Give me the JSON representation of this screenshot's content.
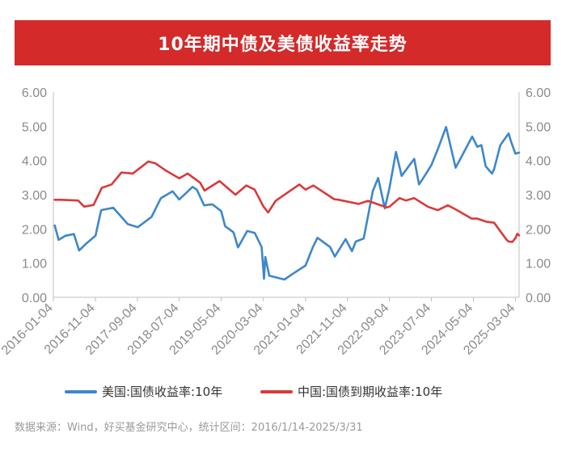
{
  "title": "10年期中债及美债收益率走势",
  "source": "数据来源：Wind，好买基金研究中心，统计区间：2016/1/14-2025/3/31",
  "colors": {
    "us": "#3d87cb",
    "cn": "#d93a3a",
    "title_bg": "#d42a2a"
  },
  "chart_data": {
    "type": "line",
    "title": "10年期中债及美债收益率走势",
    "ylim": [
      0,
      6
    ],
    "y_ticks": [
      "0.00",
      "1.00",
      "2.00",
      "3.00",
      "4.00",
      "5.00",
      "6.00"
    ],
    "x_ticks": [
      "2016-01-04",
      "2016-11-04",
      "2017-09-04",
      "2018-07-04",
      "2019-05-04",
      "2020-03-04",
      "2021-01-04",
      "2021-11-04",
      "2022-09-04",
      "2023-07-04",
      "2024-05-04",
      "2025-03-04"
    ],
    "legend_position": "bottom",
    "grid": false,
    "series": [
      {
        "name": "美国:国债收益率:10年",
        "x": [
          "2016-01-14",
          "2016-02-11",
          "2016-04-01",
          "2016-06-01",
          "2016-07-08",
          "2016-09-01",
          "2016-11-04",
          "2016-12-15",
          "2017-03-13",
          "2017-06-26",
          "2017-09-07",
          "2017-12-15",
          "2018-02-21",
          "2018-05-17",
          "2018-07-04",
          "2018-10-08",
          "2018-11-08",
          "2018-12-31",
          "2019-03-01",
          "2019-05-04",
          "2019-06-01",
          "2019-08-01",
          "2019-09-03",
          "2019-11-08",
          "2020-01-02",
          "2020-02-21",
          "2020-03-09",
          "2020-03-18",
          "2020-04-16",
          "2020-08-04",
          "2020-10-01",
          "2021-01-04",
          "2021-02-25",
          "2021-03-31",
          "2021-07-01",
          "2021-08-04",
          "2021-10-21",
          "2021-12-06",
          "2022-01-03",
          "2022-03-01",
          "2022-05-06",
          "2022-06-14",
          "2022-08-01",
          "2022-09-04",
          "2022-10-21",
          "2022-12-01",
          "2023-03-02",
          "2023-04-06",
          "2023-05-01",
          "2023-07-04",
          "2023-08-21",
          "2023-10-19",
          "2023-12-27",
          "2024-02-01",
          "2024-04-25",
          "2024-06-01",
          "2024-07-01",
          "2024-08-01",
          "2024-09-16",
          "2024-10-01",
          "2024-11-15",
          "2025-01-14",
          "2025-02-01",
          "2025-03-04",
          "2025-03-31"
        ],
        "values": [
          2.1,
          1.68,
          1.8,
          1.85,
          1.37,
          1.58,
          1.8,
          2.55,
          2.62,
          2.14,
          2.05,
          2.35,
          2.9,
          3.1,
          2.86,
          3.23,
          3.15,
          2.69,
          2.72,
          2.52,
          2.08,
          1.9,
          1.46,
          1.94,
          1.88,
          1.47,
          0.54,
          1.18,
          0.63,
          0.52,
          0.68,
          0.93,
          1.46,
          1.74,
          1.47,
          1.19,
          1.7,
          1.35,
          1.63,
          1.72,
          3.1,
          3.49,
          2.6,
          3.2,
          4.25,
          3.55,
          4.05,
          3.3,
          3.45,
          3.86,
          4.34,
          4.98,
          3.79,
          4.06,
          4.7,
          4.4,
          4.45,
          3.83,
          3.62,
          3.75,
          4.45,
          4.79,
          4.55,
          4.2,
          4.23
        ]
      },
      {
        "name": "中国:国债到期收益率:10年",
        "x": [
          "2016-01-14",
          "2016-03-01",
          "2016-07-01",
          "2016-08-15",
          "2016-10-21",
          "2016-12-20",
          "2017-03-01",
          "2017-05-11",
          "2017-08-01",
          "2017-11-22",
          "2018-01-11",
          "2018-04-01",
          "2018-07-04",
          "2018-09-03",
          "2018-12-03",
          "2019-01-03",
          "2019-04-22",
          "2019-08-15",
          "2019-11-01",
          "2020-01-01",
          "2020-03-04",
          "2020-04-08",
          "2020-06-01",
          "2020-11-20",
          "2021-01-04",
          "2021-03-01",
          "2021-07-30",
          "2021-09-01",
          "2022-01-24",
          "2022-04-01",
          "2022-08-15",
          "2022-09-04",
          "2022-11-15",
          "2023-01-01",
          "2023-03-01",
          "2023-06-13",
          "2023-08-21",
          "2023-11-01",
          "2024-01-01",
          "2024-04-22",
          "2024-06-01",
          "2024-08-05",
          "2024-10-01",
          "2024-12-31",
          "2025-01-15",
          "2025-02-10",
          "2025-03-04",
          "2025-03-18",
          "2025-03-31"
        ],
        "values": [
          2.85,
          2.85,
          2.83,
          2.65,
          2.7,
          3.2,
          3.3,
          3.65,
          3.62,
          3.97,
          3.92,
          3.7,
          3.48,
          3.62,
          3.35,
          3.12,
          3.4,
          3.0,
          3.27,
          3.15,
          2.66,
          2.48,
          2.82,
          3.3,
          3.15,
          3.27,
          2.87,
          2.85,
          2.73,
          2.82,
          2.63,
          2.65,
          2.9,
          2.83,
          2.9,
          2.64,
          2.55,
          2.69,
          2.56,
          2.3,
          2.3,
          2.21,
          2.18,
          1.68,
          1.63,
          1.62,
          1.73,
          1.86,
          1.81
        ]
      }
    ]
  }
}
